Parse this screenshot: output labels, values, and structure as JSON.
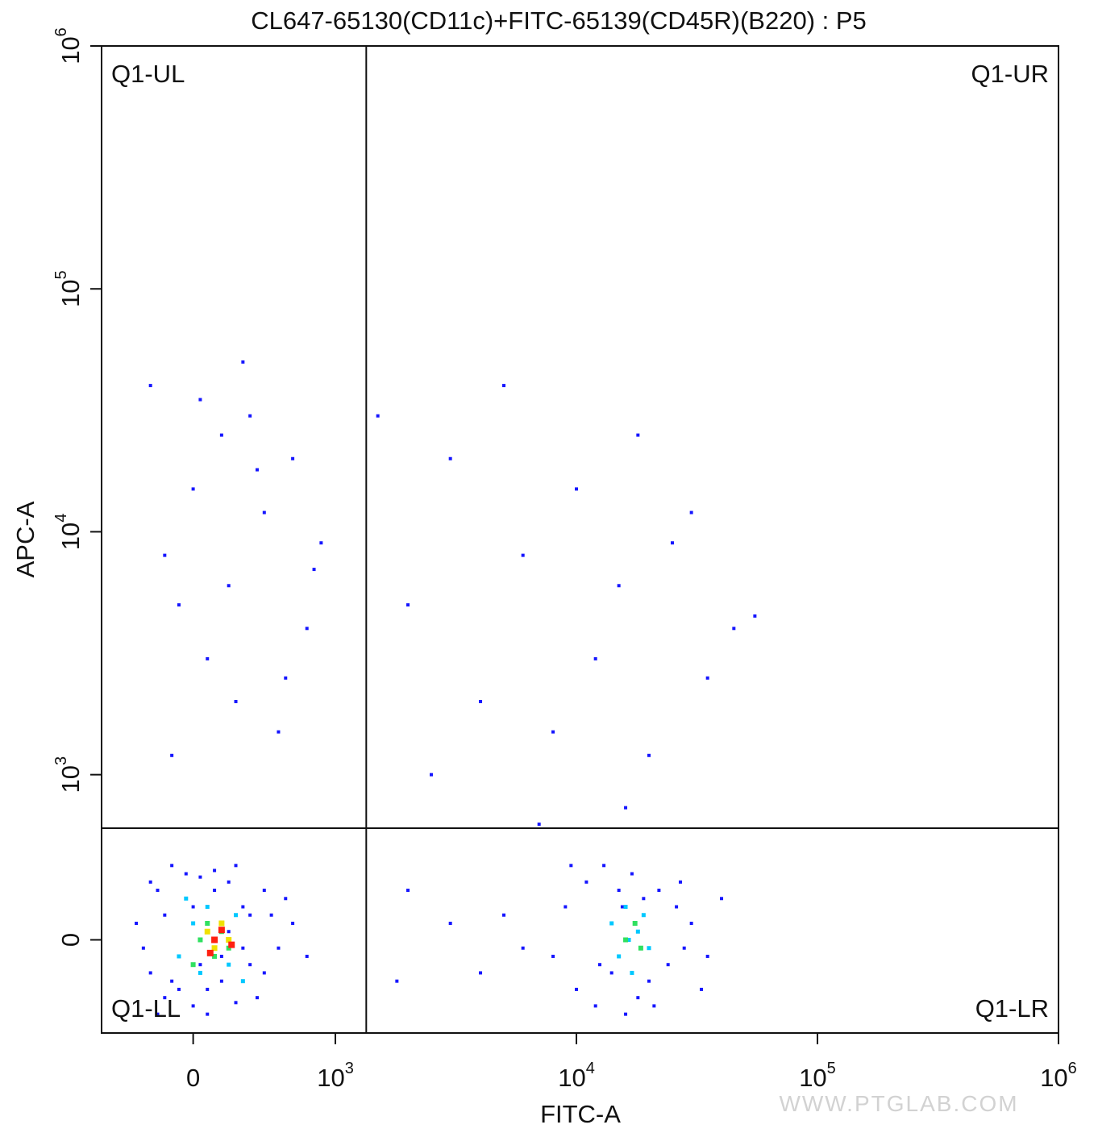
{
  "chart_data": {
    "type": "scatter",
    "title": "CL647-65130(CD11c)+FITC-65139(CD45R)(B220) : P5",
    "x_label": "FITC-A",
    "y_label": "APC-A",
    "scale": "biexponential",
    "xlim": [
      -644,
      1000000
    ],
    "ylim": [
      -564,
      1000000
    ],
    "xticks": [
      0,
      {
        "value": 1000,
        "label": "10",
        "sup": "3"
      },
      {
        "value": 10000,
        "label": "10",
        "sup": "4"
      },
      {
        "value": 100000,
        "label": "10",
        "sup": "5"
      },
      {
        "value": 1000000,
        "label": "10",
        "sup": "6"
      }
    ],
    "yticks": [
      0,
      {
        "value": 1000,
        "label": "10",
        "sup": "3"
      },
      {
        "value": 10000,
        "label": "10",
        "sup": "4"
      },
      {
        "value": 100000,
        "label": "10",
        "sup": "5"
      },
      {
        "value": 1000000,
        "label": "10",
        "sup": "6"
      }
    ],
    "gates": {
      "x": 1343,
      "y": 676
    },
    "quadrants": {
      "ul": "Q1-UL",
      "ur": "Q1-UR",
      "ll": "Q1-LL",
      "lr": "Q1-LR"
    },
    "watermark": "WWW.PTGLAB.COM",
    "series": [
      {
        "color": "#1616ff",
        "x": [
          -400,
          -300,
          -250,
          -200,
          -150,
          -100,
          -50,
          0,
          50,
          100,
          150,
          200,
          250,
          300,
          350,
          400,
          500,
          600,
          700,
          -350,
          -200,
          -100,
          0,
          100,
          200,
          300,
          400,
          500,
          -300,
          -150,
          50,
          250,
          450,
          650,
          800,
          -250,
          -50,
          150,
          350,
          550,
          8000,
          9000,
          10000,
          11000,
          12000,
          13000,
          14000,
          15000,
          16000,
          17000,
          18000,
          19000,
          20000,
          22000,
          24000,
          26000,
          28000,
          30000,
          35000,
          40000,
          9500,
          12500,
          15500,
          21000,
          27000,
          33000,
          3000,
          4000,
          5000,
          2000,
          1800,
          6000,
          -300,
          -200,
          -100,
          0,
          100,
          200,
          300,
          400,
          500,
          600,
          700,
          800,
          900,
          -150,
          50,
          250,
          450,
          650,
          850,
          350,
          1500,
          2000,
          3000,
          4000,
          5000,
          6000,
          8000,
          10000,
          12000,
          15000,
          18000,
          20000,
          25000,
          30000,
          35000,
          45000,
          55000,
          2500,
          7000,
          16000
        ],
        "y": [
          100,
          -200,
          300,
          -350,
          450,
          -100,
          250,
          -400,
          380,
          -300,
          420,
          -250,
          350,
          -380,
          200,
          -150,
          300,
          -50,
          100,
          -50,
          150,
          -300,
          200,
          -450,
          -100,
          450,
          150,
          -200,
          350,
          -250,
          -150,
          50,
          -350,
          250,
          -100,
          -450,
          400,
          300,
          -50,
          150,
          -100,
          200,
          -300,
          350,
          -400,
          450,
          -200,
          300,
          -450,
          400,
          -350,
          250,
          -250,
          300,
          -150,
          200,
          -50,
          100,
          -100,
          250,
          450,
          -150,
          200,
          -400,
          350,
          -300,
          100,
          -200,
          150,
          300,
          -250,
          -50,
          40000,
          8000,
          5000,
          15000,
          3000,
          25000,
          2000,
          30000,
          12000,
          1500,
          20000,
          4000,
          9000,
          1200,
          35000,
          6000,
          18000,
          2500,
          7000,
          50000,
          30000,
          5000,
          20000,
          2000,
          40000,
          8000,
          1500,
          15000,
          3000,
          6000,
          25000,
          1200,
          9000,
          12000,
          2500,
          4000,
          4500,
          1000,
          700,
          800
        ]
      },
      {
        "color": "#00c8ff",
        "x": [
          -100,
          0,
          50,
          100,
          150,
          200,
          250,
          300,
          -50,
          350,
          14000,
          15000,
          16000,
          17000,
          18000,
          19000,
          20000,
          16500
        ],
        "y": [
          -100,
          100,
          -200,
          200,
          -50,
          50,
          -150,
          150,
          250,
          -250,
          100,
          -100,
          200,
          -200,
          50,
          150,
          -50,
          0
        ]
      },
      {
        "color": "#30e060",
        "x": [
          50,
          100,
          150,
          200,
          250,
          0,
          16000,
          17500,
          18500
        ],
        "y": [
          0,
          100,
          -100,
          50,
          -50,
          -150,
          0,
          100,
          -50
        ]
      },
      {
        "color": "#f0e000",
        "x": [
          100,
          150,
          200,
          250
        ],
        "y": [
          50,
          -50,
          100,
          0
        ]
      },
      {
        "color": "#ff2010",
        "x": [
          150,
          200,
          270,
          120
        ],
        "y": [
          0,
          60,
          -30,
          -80
        ]
      }
    ]
  }
}
